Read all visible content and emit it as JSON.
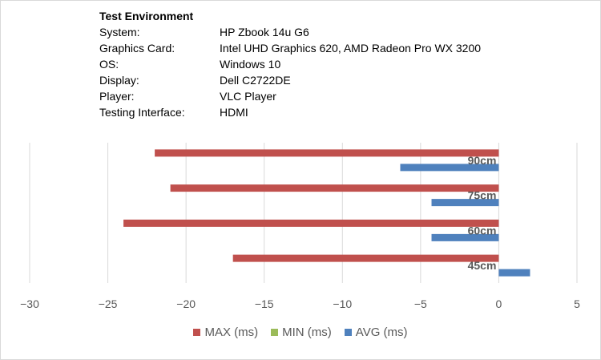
{
  "environment": {
    "title": "Test Environment",
    "rows": [
      {
        "label": "System:",
        "value": "HP Zbook 14u G6"
      },
      {
        "label": "Graphics Card:",
        "value": "Intel UHD Graphics 620, AMD Radeon Pro WX 3200"
      },
      {
        "label": "OS:",
        "value": "Windows 10"
      },
      {
        "label": "Display:",
        "value": "Dell C2722DE"
      },
      {
        "label": "Player:",
        "value": "VLC Player"
      },
      {
        "label": "Testing Interface:",
        "value": "HDMI"
      }
    ]
  },
  "chart_data": {
    "type": "bar",
    "orientation": "horizontal",
    "categories": [
      "90cm",
      "75cm",
      "60cm",
      "45cm"
    ],
    "series": [
      {
        "name": "MAX (ms)",
        "color": "#c0504d",
        "values": [
          -22,
          -21,
          -24,
          -17
        ]
      },
      {
        "name": "MIN (ms)",
        "color": "#9bbb59",
        "values": [
          0,
          0,
          0,
          0
        ]
      },
      {
        "name": "AVG (ms)",
        "color": "#4f81bd",
        "values": [
          -6.3,
          -4.3,
          -4.3,
          2
        ]
      }
    ],
    "xlim": [
      -30,
      5
    ],
    "xticks": [
      -30,
      -25,
      -20,
      -15,
      -10,
      -5,
      0,
      5
    ],
    "grid": true,
    "legend_position": "bottom"
  }
}
